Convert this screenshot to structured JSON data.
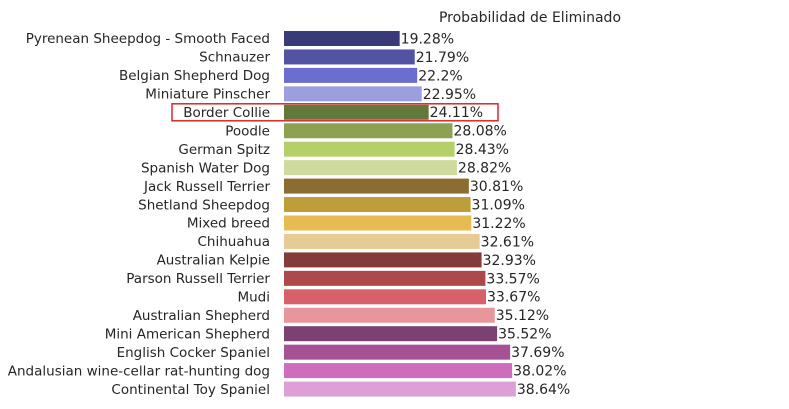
{
  "chart_data": {
    "type": "bar",
    "orientation": "horizontal",
    "title": "Probabilidad de Eliminado",
    "xlabel": "",
    "ylabel": "",
    "xlim": [
      0,
      50
    ],
    "grid": false,
    "value_suffix": "%",
    "highlighted_category": "Border Collie",
    "highlight_color": "#d62728",
    "categories": [
      "Pyrenean Sheepdog - Smooth Faced",
      "Schnauzer",
      "Belgian Shepherd Dog",
      "Miniature Pinscher",
      "Border Collie",
      "Poodle",
      "German Spitz",
      "Spanish Water Dog",
      "Jack Russell Terrier",
      "Shetland Sheepdog",
      "Mixed breed",
      "Chihuahua",
      "Australian Kelpie",
      "Parson Russell Terrier",
      "Mudi",
      "Australian Shepherd",
      "Mini American Shepherd",
      "English Cocker Spaniel",
      "Andalusian wine-cellar rat-hunting dog",
      "Continental Toy Spaniel"
    ],
    "values": [
      19.28,
      21.79,
      22.2,
      22.95,
      24.11,
      28.08,
      28.43,
      28.82,
      30.81,
      31.09,
      31.22,
      32.61,
      32.93,
      33.57,
      33.67,
      35.12,
      35.52,
      37.69,
      38.02,
      38.64
    ],
    "labels": [
      "19.28%",
      "21.79%",
      "22.2%",
      "22.95%",
      "24.11%",
      "28.08%",
      "28.43%",
      "28.82%",
      "30.81%",
      "31.09%",
      "31.22%",
      "32.61%",
      "32.93%",
      "33.57%",
      "33.67%",
      "35.12%",
      "35.52%",
      "37.69%",
      "38.02%",
      "38.64%"
    ],
    "colors": [
      "#393b79",
      "#5254a3",
      "#6b6ecf",
      "#9c9ede",
      "#637939",
      "#8ca252",
      "#b5cf6b",
      "#cedb9c",
      "#8c6d31",
      "#bd9e39",
      "#e7ba52",
      "#e7cb94",
      "#843c39",
      "#ad494a",
      "#d6616b",
      "#e7969c",
      "#7b4173",
      "#a55194",
      "#ce6dbd",
      "#de9ed6"
    ]
  }
}
